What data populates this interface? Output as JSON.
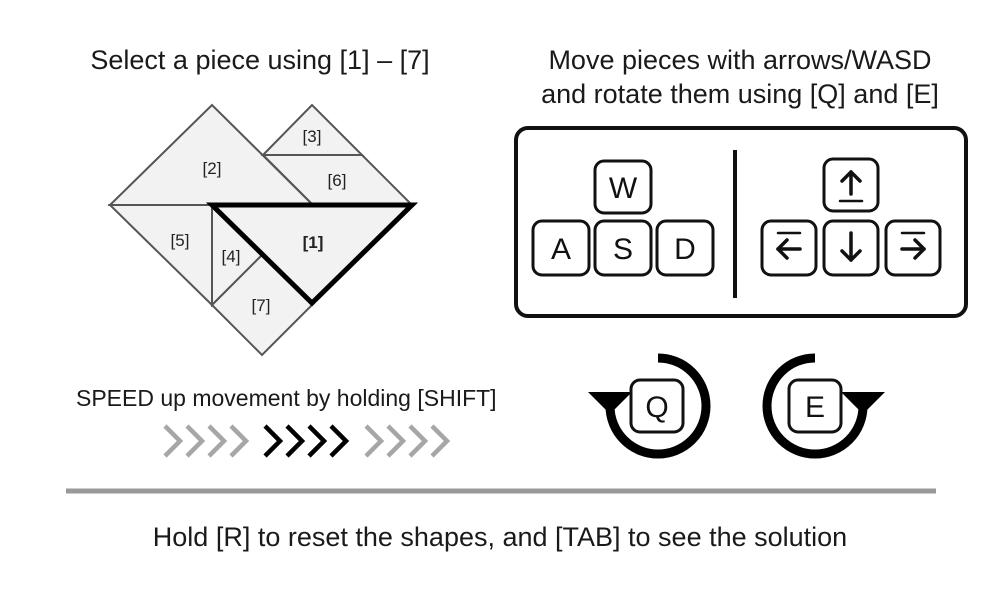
{
  "instructions": {
    "select_text": "Select a piece using [1] – [7]",
    "move_text_line1": "Move pieces with arrows/WASD",
    "move_text_line2": "and rotate them using [Q] and [E]",
    "speed_text": "SPEED up movement by holding [SHIFT]",
    "footer_text": "Hold [R] to reset the shapes, and [TAB] to see the solution"
  },
  "tangram": {
    "pieces": [
      {
        "label": "[1]",
        "selected": true
      },
      {
        "label": "[2]",
        "selected": false
      },
      {
        "label": "[3]",
        "selected": false
      },
      {
        "label": "[4]",
        "selected": false
      },
      {
        "label": "[5]",
        "selected": false
      },
      {
        "label": "[6]",
        "selected": false
      },
      {
        "label": "[7]",
        "selected": false
      }
    ]
  },
  "keys": {
    "wasd": [
      "W",
      "A",
      "S",
      "D"
    ],
    "arrows": [
      "up-arrow-icon",
      "left-arrow-icon",
      "down-arrow-icon",
      "right-arrow-icon"
    ],
    "rotate_ccw": "Q",
    "rotate_cw": "E"
  },
  "colors": {
    "piece_fill": "#f2f2f2",
    "piece_stroke": "#555555",
    "selected_stroke": "#000000",
    "divider": "#999999",
    "chevron_light": "#a6a6a6",
    "chevron_dark": "#000000"
  }
}
